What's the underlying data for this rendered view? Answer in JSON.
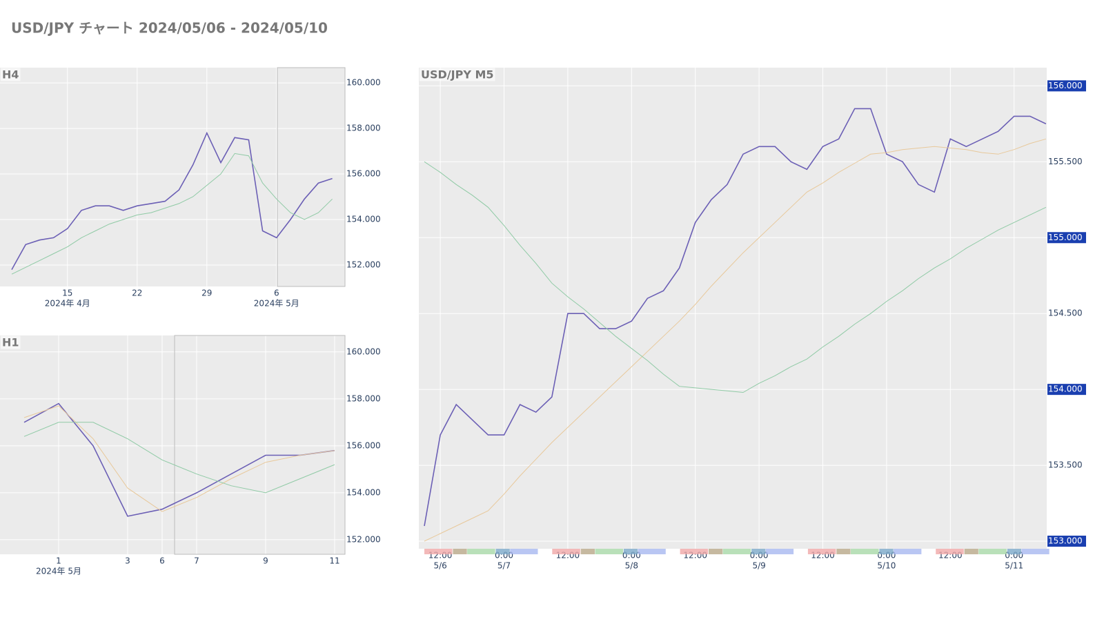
{
  "title": "USD/JPY チャート 2024/05/06 - 2024/05/10",
  "chart_data": [
    {
      "type": "line",
      "title": "H4",
      "grid": true,
      "x": [
        "2024-04-09",
        "2024-04-10",
        "2024-04-11",
        "2024-04-12",
        "2024-04-15",
        "2024-04-16",
        "2024-04-17",
        "2024-04-18",
        "2024-04-19",
        "2024-04-22",
        "2024-04-23",
        "2024-04-24",
        "2024-04-25",
        "2024-04-26",
        "2024-04-29",
        "2024-04-30",
        "2024-05-01",
        "2024-05-02",
        "2024-05-03",
        "2024-05-06",
        "2024-05-07",
        "2024-05-08",
        "2024-05-09",
        "2024-05-10"
      ],
      "series": [
        {
          "color": "#6b5fb5",
          "values": [
            151.8,
            152.9,
            153.1,
            153.2,
            153.6,
            154.4,
            154.6,
            154.6,
            154.4,
            154.6,
            154.7,
            154.8,
            155.3,
            156.4,
            157.8,
            156.5,
            157.6,
            157.5,
            153.5,
            153.2,
            154.0,
            154.9,
            155.6,
            155.8
          ]
        },
        {
          "color": "#8fcaa5",
          "values": [
            151.6,
            151.9,
            152.2,
            152.5,
            152.8,
            153.2,
            153.5,
            153.8,
            154.0,
            154.2,
            154.3,
            154.5,
            154.7,
            155.0,
            155.5,
            156.0,
            156.9,
            156.8,
            155.6,
            154.9,
            154.3,
            154.0,
            154.3,
            154.9
          ]
        }
      ],
      "ylim": [
        151.06,
        160.67
      ],
      "yticks": [
        {
          "value": 152,
          "label": "152.000"
        },
        {
          "value": 154,
          "label": "154.000"
        },
        {
          "value": 156,
          "label": "156.000"
        },
        {
          "value": 158,
          "label": "158.000"
        },
        {
          "value": 160,
          "label": "160.000"
        }
      ],
      "xticks": [
        {
          "value": "2024-04-15",
          "label": "15"
        },
        {
          "value": "2024-04-22",
          "label": "22"
        },
        {
          "value": "2024-04-29",
          "label": "29"
        },
        {
          "value": "2024-05-06",
          "label": "6"
        }
      ],
      "xticks_secondary": [
        {
          "value": "2024-04-15",
          "label": "2024年 4月"
        },
        {
          "value": "2024-05-06",
          "label": "2024年 5月"
        }
      ]
    },
    {
      "type": "line",
      "title": "H1",
      "grid": true,
      "x": [
        "2024-04-30",
        "2024-05-01",
        "2024-05-02",
        "2024-05-03",
        "2024-05-06",
        "2024-05-07",
        "2024-05-08",
        "2024-05-09",
        "2024-05-10",
        "2024-05-11"
      ],
      "series": [
        {
          "color": "#6b5fb5",
          "values": [
            157.0,
            157.8,
            156.0,
            153.0,
            153.3,
            154.0,
            154.8,
            155.6,
            155.6,
            155.8
          ]
        },
        {
          "color": "#e8c89a",
          "values": [
            157.2,
            157.7,
            156.3,
            154.2,
            153.2,
            153.8,
            154.6,
            155.3,
            155.6,
            155.8
          ]
        },
        {
          "color": "#8fcaa5",
          "values": [
            156.4,
            157.0,
            157.0,
            156.3,
            155.4,
            154.8,
            154.3,
            154.0,
            154.6,
            155.2
          ]
        }
      ],
      "ylim": [
        151.38,
        160.7
      ],
      "yticks": [
        {
          "value": 152,
          "label": "152.000"
        },
        {
          "value": 154,
          "label": "154.000"
        },
        {
          "value": 156,
          "label": "156.000"
        },
        {
          "value": 158,
          "label": "158.000"
        },
        {
          "value": 160,
          "label": "160.000"
        }
      ],
      "xticks": [
        {
          "value": "2024-05-01",
          "label": "1"
        },
        {
          "value": "2024-05-03",
          "label": "3"
        },
        {
          "value": "2024-05-06",
          "label": "6"
        },
        {
          "value": "2024-05-07",
          "label": "7"
        },
        {
          "value": "2024-05-09",
          "label": "9"
        },
        {
          "value": "2024-05-11",
          "label": "11"
        }
      ],
      "xticks_secondary": [
        {
          "value": "2024-05-01",
          "label": "2024年 5月"
        }
      ]
    },
    {
      "type": "line",
      "title": "USD/JPY M5",
      "grid": true,
      "x": [
        "5/6 09:00",
        "5/6 12:00",
        "5/6 15:00",
        "5/6 18:00",
        "5/6 21:00",
        "5/7 00:00",
        "5/7 03:00",
        "5/7 06:00",
        "5/7 09:00",
        "5/7 12:00",
        "5/7 15:00",
        "5/7 18:00",
        "5/7 21:00",
        "5/8 00:00",
        "5/8 03:00",
        "5/8 06:00",
        "5/8 09:00",
        "5/8 12:00",
        "5/8 15:00",
        "5/8 18:00",
        "5/8 21:00",
        "5/9 00:00",
        "5/9 03:00",
        "5/9 06:00",
        "5/9 09:00",
        "5/9 12:00",
        "5/9 15:00",
        "5/9 18:00",
        "5/9 21:00",
        "5/10 00:00",
        "5/10 03:00",
        "5/10 06:00",
        "5/10 09:00",
        "5/10 12:00",
        "5/10 15:00",
        "5/10 18:00",
        "5/10 21:00",
        "5/11 00:00",
        "5/11 03:00",
        "5/11 06:00"
      ],
      "series": [
        {
          "color": "#6b5fb5",
          "values": [
            153.1,
            153.7,
            153.9,
            153.8,
            153.7,
            153.7,
            153.9,
            153.85,
            153.95,
            154.5,
            154.5,
            154.4,
            154.4,
            154.45,
            154.6,
            154.65,
            154.8,
            155.1,
            155.25,
            155.35,
            155.55,
            155.6,
            155.6,
            155.5,
            155.45,
            155.6,
            155.65,
            155.85,
            155.85,
            155.55,
            155.5,
            155.35,
            155.3,
            155.65,
            155.6,
            155.65,
            155.7,
            155.8,
            155.8,
            155.75
          ]
        },
        {
          "color": "#e8c89a",
          "values": [
            153.0,
            153.05,
            153.1,
            153.15,
            153.2,
            153.31,
            153.43,
            153.54,
            153.65,
            153.75,
            153.85,
            153.95,
            154.05,
            154.15,
            154.25,
            154.35,
            154.45,
            154.56,
            154.68,
            154.79,
            154.9,
            155.0,
            155.1,
            155.2,
            155.3,
            155.36,
            155.43,
            155.49,
            155.55,
            155.56,
            155.58,
            155.59,
            155.6,
            155.59,
            155.58,
            155.56,
            155.55,
            155.58,
            155.62,
            155.65
          ]
        },
        {
          "color": "#8fcaa5",
          "values": [
            155.5,
            155.43,
            155.35,
            155.28,
            155.2,
            155.08,
            154.95,
            154.83,
            154.7,
            154.61,
            154.53,
            154.44,
            154.35,
            154.27,
            154.19,
            154.1,
            154.02,
            154.01,
            154.0,
            153.99,
            153.98,
            154.04,
            154.09,
            154.15,
            154.2,
            154.28,
            154.35,
            154.43,
            154.5,
            154.58,
            154.65,
            154.73,
            154.8,
            154.86,
            154.93,
            154.99,
            155.05,
            155.1,
            155.15,
            155.2
          ]
        }
      ],
      "ylim": [
        152.95,
        156.12
      ],
      "yticks": [
        {
          "value": 153,
          "label": "153.000",
          "boxed": true
        },
        {
          "value": 153.5,
          "label": "153.500"
        },
        {
          "value": 154,
          "label": "154.000",
          "boxed": true
        },
        {
          "value": 154.5,
          "label": "154.500"
        },
        {
          "value": 155,
          "label": "155.000",
          "boxed": true
        },
        {
          "value": 155.5,
          "label": "155.500"
        },
        {
          "value": 156,
          "label": "156.000",
          "boxed": true
        }
      ],
      "xticks": [
        {
          "value": "5/6 12:00",
          "label": "12:00"
        },
        {
          "value": "5/7 00:00",
          "label": "0:00"
        },
        {
          "value": "5/7 12:00",
          "label": "12:00"
        },
        {
          "value": "5/8 00:00",
          "label": "0:00"
        },
        {
          "value": "5/8 12:00",
          "label": "12:00"
        },
        {
          "value": "5/9 00:00",
          "label": "0:00"
        },
        {
          "value": "5/9 12:00",
          "label": "12:00"
        },
        {
          "value": "5/10 00:00",
          "label": "0:00"
        },
        {
          "value": "5/10 12:00",
          "label": "12:00"
        },
        {
          "value": "5/11 00:00",
          "label": "0:00"
        }
      ],
      "xticks_secondary": [
        {
          "value": "5/6 12:00",
          "label": "5/6"
        },
        {
          "value": "5/7 00:00",
          "label": "5/7"
        },
        {
          "value": "5/8 00:00",
          "label": "5/8"
        },
        {
          "value": "5/9 00:00",
          "label": "5/9"
        },
        {
          "value": "5/10 00:00",
          "label": "5/10"
        },
        {
          "value": "5/11 00:00",
          "label": "5/11"
        }
      ]
    }
  ]
}
